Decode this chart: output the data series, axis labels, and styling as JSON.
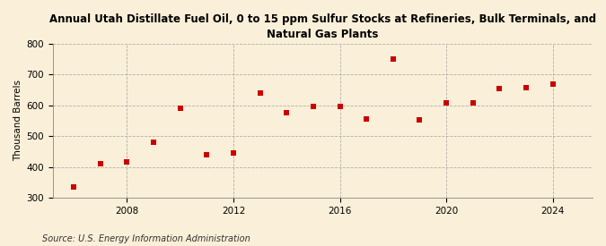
{
  "title": "Annual Utah Distillate Fuel Oil, 0 to 15 ppm Sulfur Stocks at Refineries, Bulk Terminals, and\nNatural Gas Plants",
  "ylabel": "Thousand Barrels",
  "source": "Source: U.S. Energy Information Administration",
  "background_color": "#faefd8",
  "plot_bg_color": "#faefd8",
  "marker_color": "#cc0000",
  "marker": "s",
  "marker_size": 4,
  "years": [
    2006,
    2007,
    2008,
    2009,
    2010,
    2011,
    2012,
    2013,
    2014,
    2015,
    2016,
    2017,
    2018,
    2019,
    2020,
    2021,
    2022,
    2023,
    2024
  ],
  "values": [
    335,
    410,
    415,
    480,
    590,
    440,
    445,
    640,
    575,
    597,
    597,
    555,
    750,
    553,
    607,
    609,
    655,
    658,
    668
  ],
  "ylim": [
    300,
    800
  ],
  "yticks": [
    300,
    400,
    500,
    600,
    700,
    800
  ],
  "xlim": [
    2005.2,
    2025.5
  ],
  "xticks": [
    2008,
    2012,
    2016,
    2020,
    2024
  ],
  "grid_color": "#aaaaaa",
  "grid_style": "--",
  "title_fontsize": 8.5,
  "axis_fontsize": 7.5,
  "source_fontsize": 7
}
